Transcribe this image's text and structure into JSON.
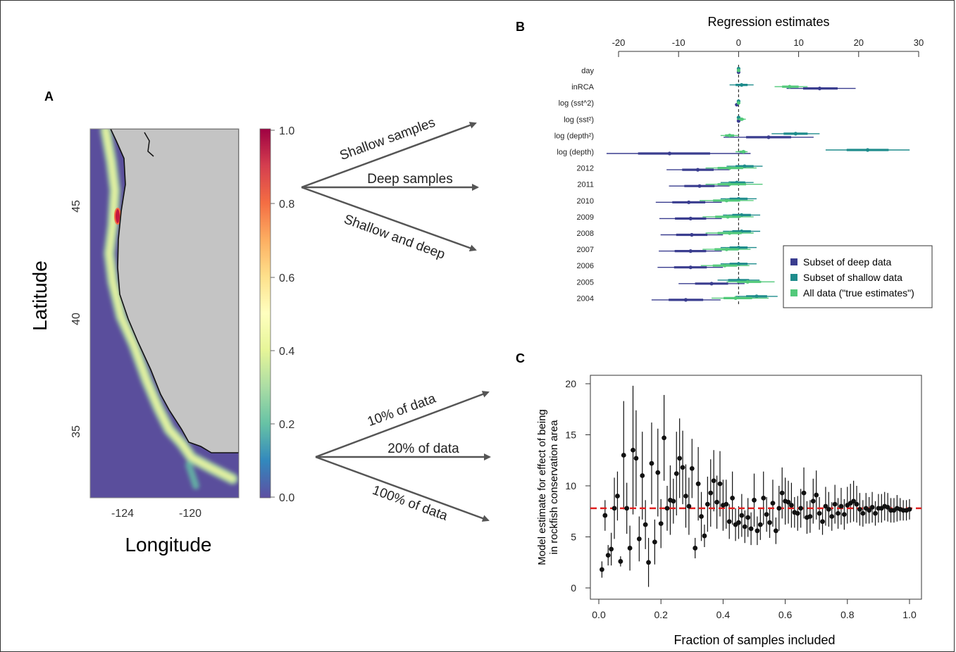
{
  "panel_labels": {
    "a": "A",
    "b": "B",
    "c": "C"
  },
  "panel_a": {
    "xlabel": "Longitude",
    "ylabel": "Latitude",
    "x_ticks": [
      "-124",
      "-120"
    ],
    "y_ticks": [
      "45",
      "40",
      "35"
    ],
    "colorbar_ticks": [
      "1.0",
      "0.8",
      "0.6",
      "0.4",
      "0.2",
      "0.0"
    ],
    "colors": {
      "ocean": "#5a4e9c",
      "land": "#c4c4c4",
      "high": "#c4173f"
    }
  },
  "flow_labels": {
    "top": [
      "Shallow samples",
      "Deep samples",
      "Shallow and deep"
    ],
    "bottom": [
      "10% of data",
      "20% of data",
      "100% of data"
    ]
  },
  "chart_data": [
    {
      "type": "scatter",
      "panel": "B",
      "title": "Regression estimates",
      "x_ticks": [
        -20,
        -10,
        0,
        10,
        20,
        30
      ],
      "xlim": [
        -20,
        30
      ],
      "reference_line_x": 0,
      "categories": [
        "day",
        "inRCA",
        "log (sst^2)",
        "log (sst²)",
        "log (depth²)",
        "log (depth)",
        "2012",
        "2011",
        "2010",
        "2009",
        "2008",
        "2007",
        "2006",
        "2005",
        "2004"
      ],
      "legend": [
        "Subset of deep data",
        "Subset of shallow data",
        "All data (\"true estimates\")"
      ],
      "legend_position": "bottom-right",
      "series": [
        {
          "name": "Subset of deep data",
          "color": "#3a3d8f",
          "estimates": [
            0,
            13.5,
            -0.3,
            0,
            5,
            -11.5,
            -6.8,
            -6.5,
            -8.3,
            -8,
            -7.8,
            -8,
            -8,
            -4.5,
            -8.8
          ],
          "low": [
            -0.2,
            8,
            -0.6,
            -0.3,
            -2.5,
            -22,
            -12,
            -11.6,
            -13.8,
            -13.2,
            -13,
            -13.3,
            -13.5,
            -10,
            -14.5
          ],
          "high": [
            0.2,
            19.5,
            0,
            0.3,
            12.5,
            2,
            -1.5,
            -1.5,
            -2.8,
            -2.8,
            -2.6,
            -2.8,
            -2.6,
            1,
            -3
          ]
        },
        {
          "name": "Subset of shallow data",
          "color": "#1e8c8c",
          "estimates": [
            0,
            0.5,
            0,
            0,
            9.5,
            21.5,
            1,
            -0.3,
            0,
            0.5,
            0.5,
            0,
            0,
            0,
            3
          ],
          "low": [
            -0.2,
            -1.5,
            -0.3,
            -0.3,
            5.5,
            14.5,
            -2,
            -3,
            -3,
            -2.6,
            -2.6,
            -3,
            -3,
            -3.5,
            -0.5
          ],
          "high": [
            0.2,
            2.5,
            0.3,
            0.3,
            13.5,
            28.5,
            4,
            2.5,
            3,
            3.6,
            3.6,
            3,
            3,
            3.5,
            6.5
          ]
        },
        {
          "name": "All data (\"true estimates\")",
          "color": "#52c97a",
          "estimates": [
            0,
            8.5,
            0,
            0.5,
            -1.5,
            0.8,
            -1.5,
            -1.5,
            -2,
            -1.8,
            -1.5,
            -2,
            -2.3,
            1.5,
            -0.5
          ],
          "low": [
            -0.2,
            6,
            -0.3,
            -0.3,
            -3,
            -0.5,
            -5.5,
            -5.5,
            -6.5,
            -6,
            -5.5,
            -6,
            -6.3,
            -2,
            -4.5
          ],
          "high": [
            0.2,
            11.5,
            0.3,
            1.2,
            0,
            1.5,
            3,
            4,
            2.5,
            2.5,
            2.5,
            2,
            1.8,
            6,
            5
          ]
        }
      ]
    },
    {
      "type": "scatter",
      "panel": "C",
      "xlabel": "Fraction of samples included",
      "ylabel": [
        "Model estimate for effect of being",
        "in rockfish conservation area"
      ],
      "xlim": [
        0,
        1
      ],
      "ylim": [
        0,
        21
      ],
      "x_ticks": [
        "0.0",
        "0.2",
        "0.4",
        "0.6",
        "0.8",
        "1.0"
      ],
      "y_ticks": [
        "0",
        "5",
        "10",
        "15",
        "20"
      ],
      "reference_line_y": 7.8,
      "reference_color": "#e02020",
      "x": [
        0.01,
        0.02,
        0.03,
        0.04,
        0.05,
        0.06,
        0.07,
        0.08,
        0.09,
        0.1,
        0.11,
        0.12,
        0.13,
        0.14,
        0.15,
        0.16,
        0.17,
        0.18,
        0.19,
        0.2,
        0.21,
        0.22,
        0.23,
        0.24,
        0.25,
        0.26,
        0.27,
        0.28,
        0.29,
        0.3,
        0.31,
        0.32,
        0.33,
        0.34,
        0.35,
        0.36,
        0.37,
        0.38,
        0.39,
        0.4,
        0.41,
        0.42,
        0.43,
        0.44,
        0.45,
        0.46,
        0.47,
        0.48,
        0.49,
        0.5,
        0.51,
        0.52,
        0.53,
        0.54,
        0.55,
        0.56,
        0.57,
        0.58,
        0.59,
        0.6,
        0.61,
        0.62,
        0.63,
        0.64,
        0.65,
        0.66,
        0.67,
        0.68,
        0.69,
        0.7,
        0.71,
        0.72,
        0.73,
        0.74,
        0.75,
        0.76,
        0.77,
        0.78,
        0.79,
        0.8,
        0.81,
        0.82,
        0.83,
        0.84,
        0.85,
        0.86,
        0.87,
        0.88,
        0.89,
        0.9,
        0.91,
        0.92,
        0.93,
        0.94,
        0.95,
        0.96,
        0.97,
        0.98,
        0.99,
        1.0
      ],
      "y": [
        1.8,
        7.1,
        3.2,
        3.8,
        7.8,
        9.0,
        2.6,
        13.0,
        7.8,
        3.9,
        13.5,
        12.7,
        4.8,
        11.0,
        6.2,
        2.5,
        12.2,
        4.5,
        11.3,
        6.3,
        14.7,
        7.8,
        8.6,
        8.5,
        11.2,
        12.7,
        11.8,
        9.0,
        8.0,
        11.7,
        3.9,
        10.2,
        7.0,
        5.1,
        8.2,
        9.3,
        10.5,
        8.4,
        10.2,
        8.1,
        8.2,
        6.5,
        8.8,
        6.2,
        6.4,
        7.1,
        6.0,
        6.9,
        5.8,
        8.6,
        5.6,
        6.2,
        8.8,
        7.2,
        6.4,
        8.3,
        5.6,
        7.8,
        9.3,
        8.5,
        8.4,
        8.1,
        7.4,
        7.3,
        7.8,
        9.3,
        6.9,
        7.0,
        8.5,
        9.1,
        7.3,
        6.5,
        8.0,
        7.7,
        7.0,
        8.2,
        7.3,
        8.0,
        7.2,
        8.1,
        8.3,
        8.5,
        8.2,
        7.7,
        7.3,
        7.8,
        7.6,
        7.9,
        7.3,
        7.8,
        7.8,
        8.0,
        7.9,
        7.6,
        7.6,
        7.8,
        7.7,
        7.6,
        7.6,
        7.7
      ],
      "err": [
        0.8,
        1.5,
        1.0,
        1.6,
        3.0,
        2.4,
        0.5,
        5.3,
        2.5,
        2.2,
        6.3,
        4.7,
        2.2,
        4.3,
        2.4,
        2.4,
        4.0,
        2.2,
        4.3,
        2.4,
        4.2,
        2.2,
        3.4,
        2.2,
        4.1,
        3.9,
        3.6,
        3.1,
        2.8,
        2.9,
        1.0,
        3.6,
        2.4,
        1.1,
        2.7,
        3.3,
        3.0,
        2.6,
        3.2,
        2.5,
        2.4,
        1.7,
        2.6,
        1.6,
        1.6,
        2.1,
        1.6,
        1.9,
        1.6,
        2.6,
        1.4,
        1.5,
        2.6,
        1.7,
        1.5,
        2.3,
        1.3,
        2.2,
        2.5,
        2.3,
        2.1,
        2.2,
        1.5,
        1.7,
        1.9,
        2.5,
        1.6,
        1.6,
        2.2,
        2.4,
        1.6,
        1.3,
        1.9,
        1.7,
        1.4,
        1.9,
        1.5,
        1.8,
        1.5,
        1.8,
        1.9,
        2.0,
        1.8,
        1.6,
        1.3,
        1.5,
        1.3,
        1.5,
        1.2,
        1.4,
        1.4,
        1.4,
        1.4,
        1.2,
        1.2,
        1.3,
        1.1,
        1.0,
        1.0,
        1.0
      ]
    }
  ]
}
